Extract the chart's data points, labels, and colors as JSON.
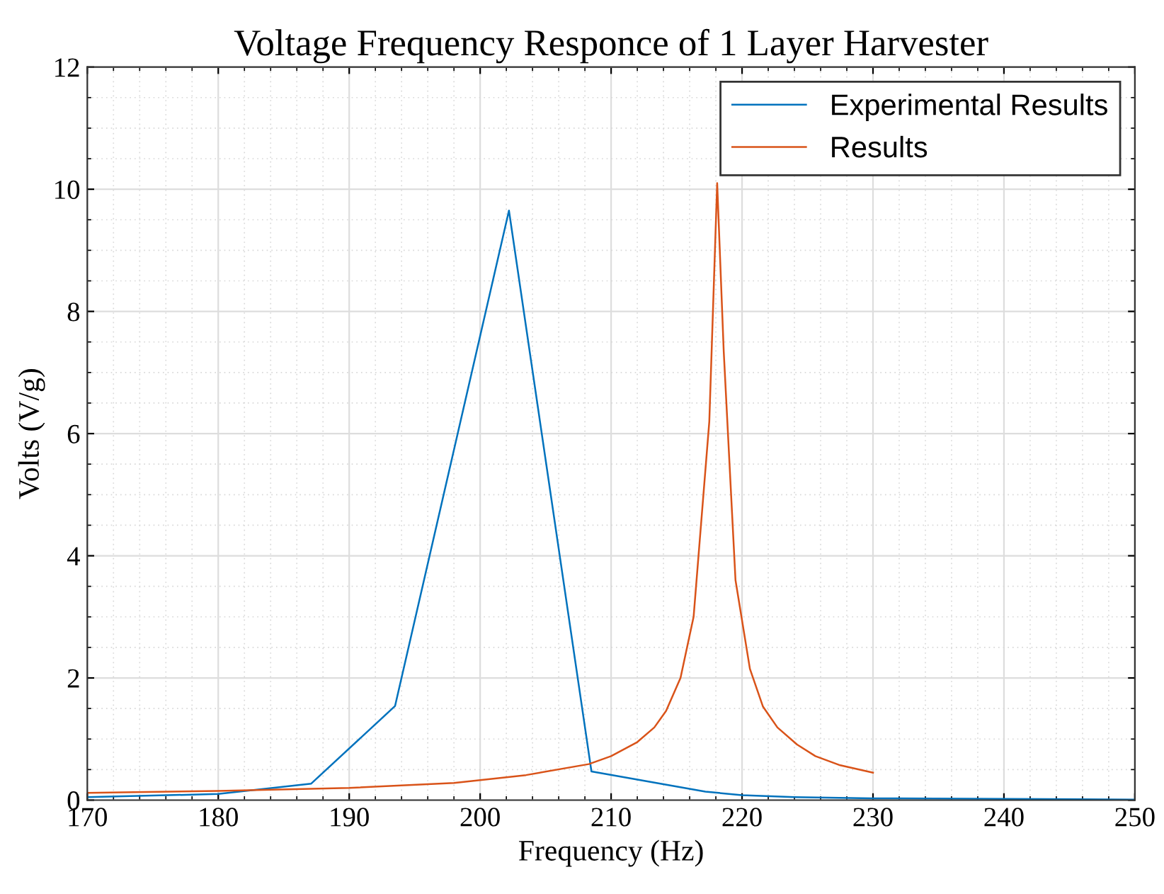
{
  "chart_data": {
    "type": "line",
    "title": "Voltage Frequency Responce of 1 Layer Harvester",
    "xlabel": "Frequency (Hz)",
    "ylabel": "Volts (V/g)",
    "xlim": [
      170,
      250
    ],
    "xticks": [
      170,
      180,
      190,
      200,
      210,
      220,
      230,
      240,
      250
    ],
    "ylim": [
      0,
      12
    ],
    "yticks": [
      0,
      2,
      4,
      6,
      8,
      10,
      12
    ],
    "grid": true,
    "legend": "top right",
    "marker": "none",
    "line_style": "solid",
    "series": [
      {
        "name": "Experimental Results",
        "color": "#0072bd",
        "x": [
          170,
          180,
          187.1,
          193.5,
          202.2,
          208.5,
          217.2,
          220,
          224,
          230,
          250
        ],
        "values": [
          0.05,
          0.1,
          0.27,
          1.54,
          9.65,
          0.47,
          0.14,
          0.08,
          0.05,
          0.03,
          0.01
        ]
      },
      {
        "name": "Results",
        "color": "#d95319",
        "x": [
          170,
          180,
          190,
          198,
          203.5,
          208.3,
          210,
          212,
          213.3,
          214.2,
          215.3,
          216.3,
          217.5,
          218.1,
          218.6,
          219.5,
          220.6,
          221.6,
          222.7,
          224.2,
          225.6,
          227.5,
          230
        ],
        "values": [
          0.12,
          0.15,
          0.2,
          0.28,
          0.41,
          0.59,
          0.72,
          0.95,
          1.19,
          1.46,
          2.0,
          3.0,
          6.2,
          10.1,
          7.35,
          3.6,
          2.15,
          1.53,
          1.19,
          0.91,
          0.72,
          0.57,
          0.45
        ]
      }
    ]
  }
}
